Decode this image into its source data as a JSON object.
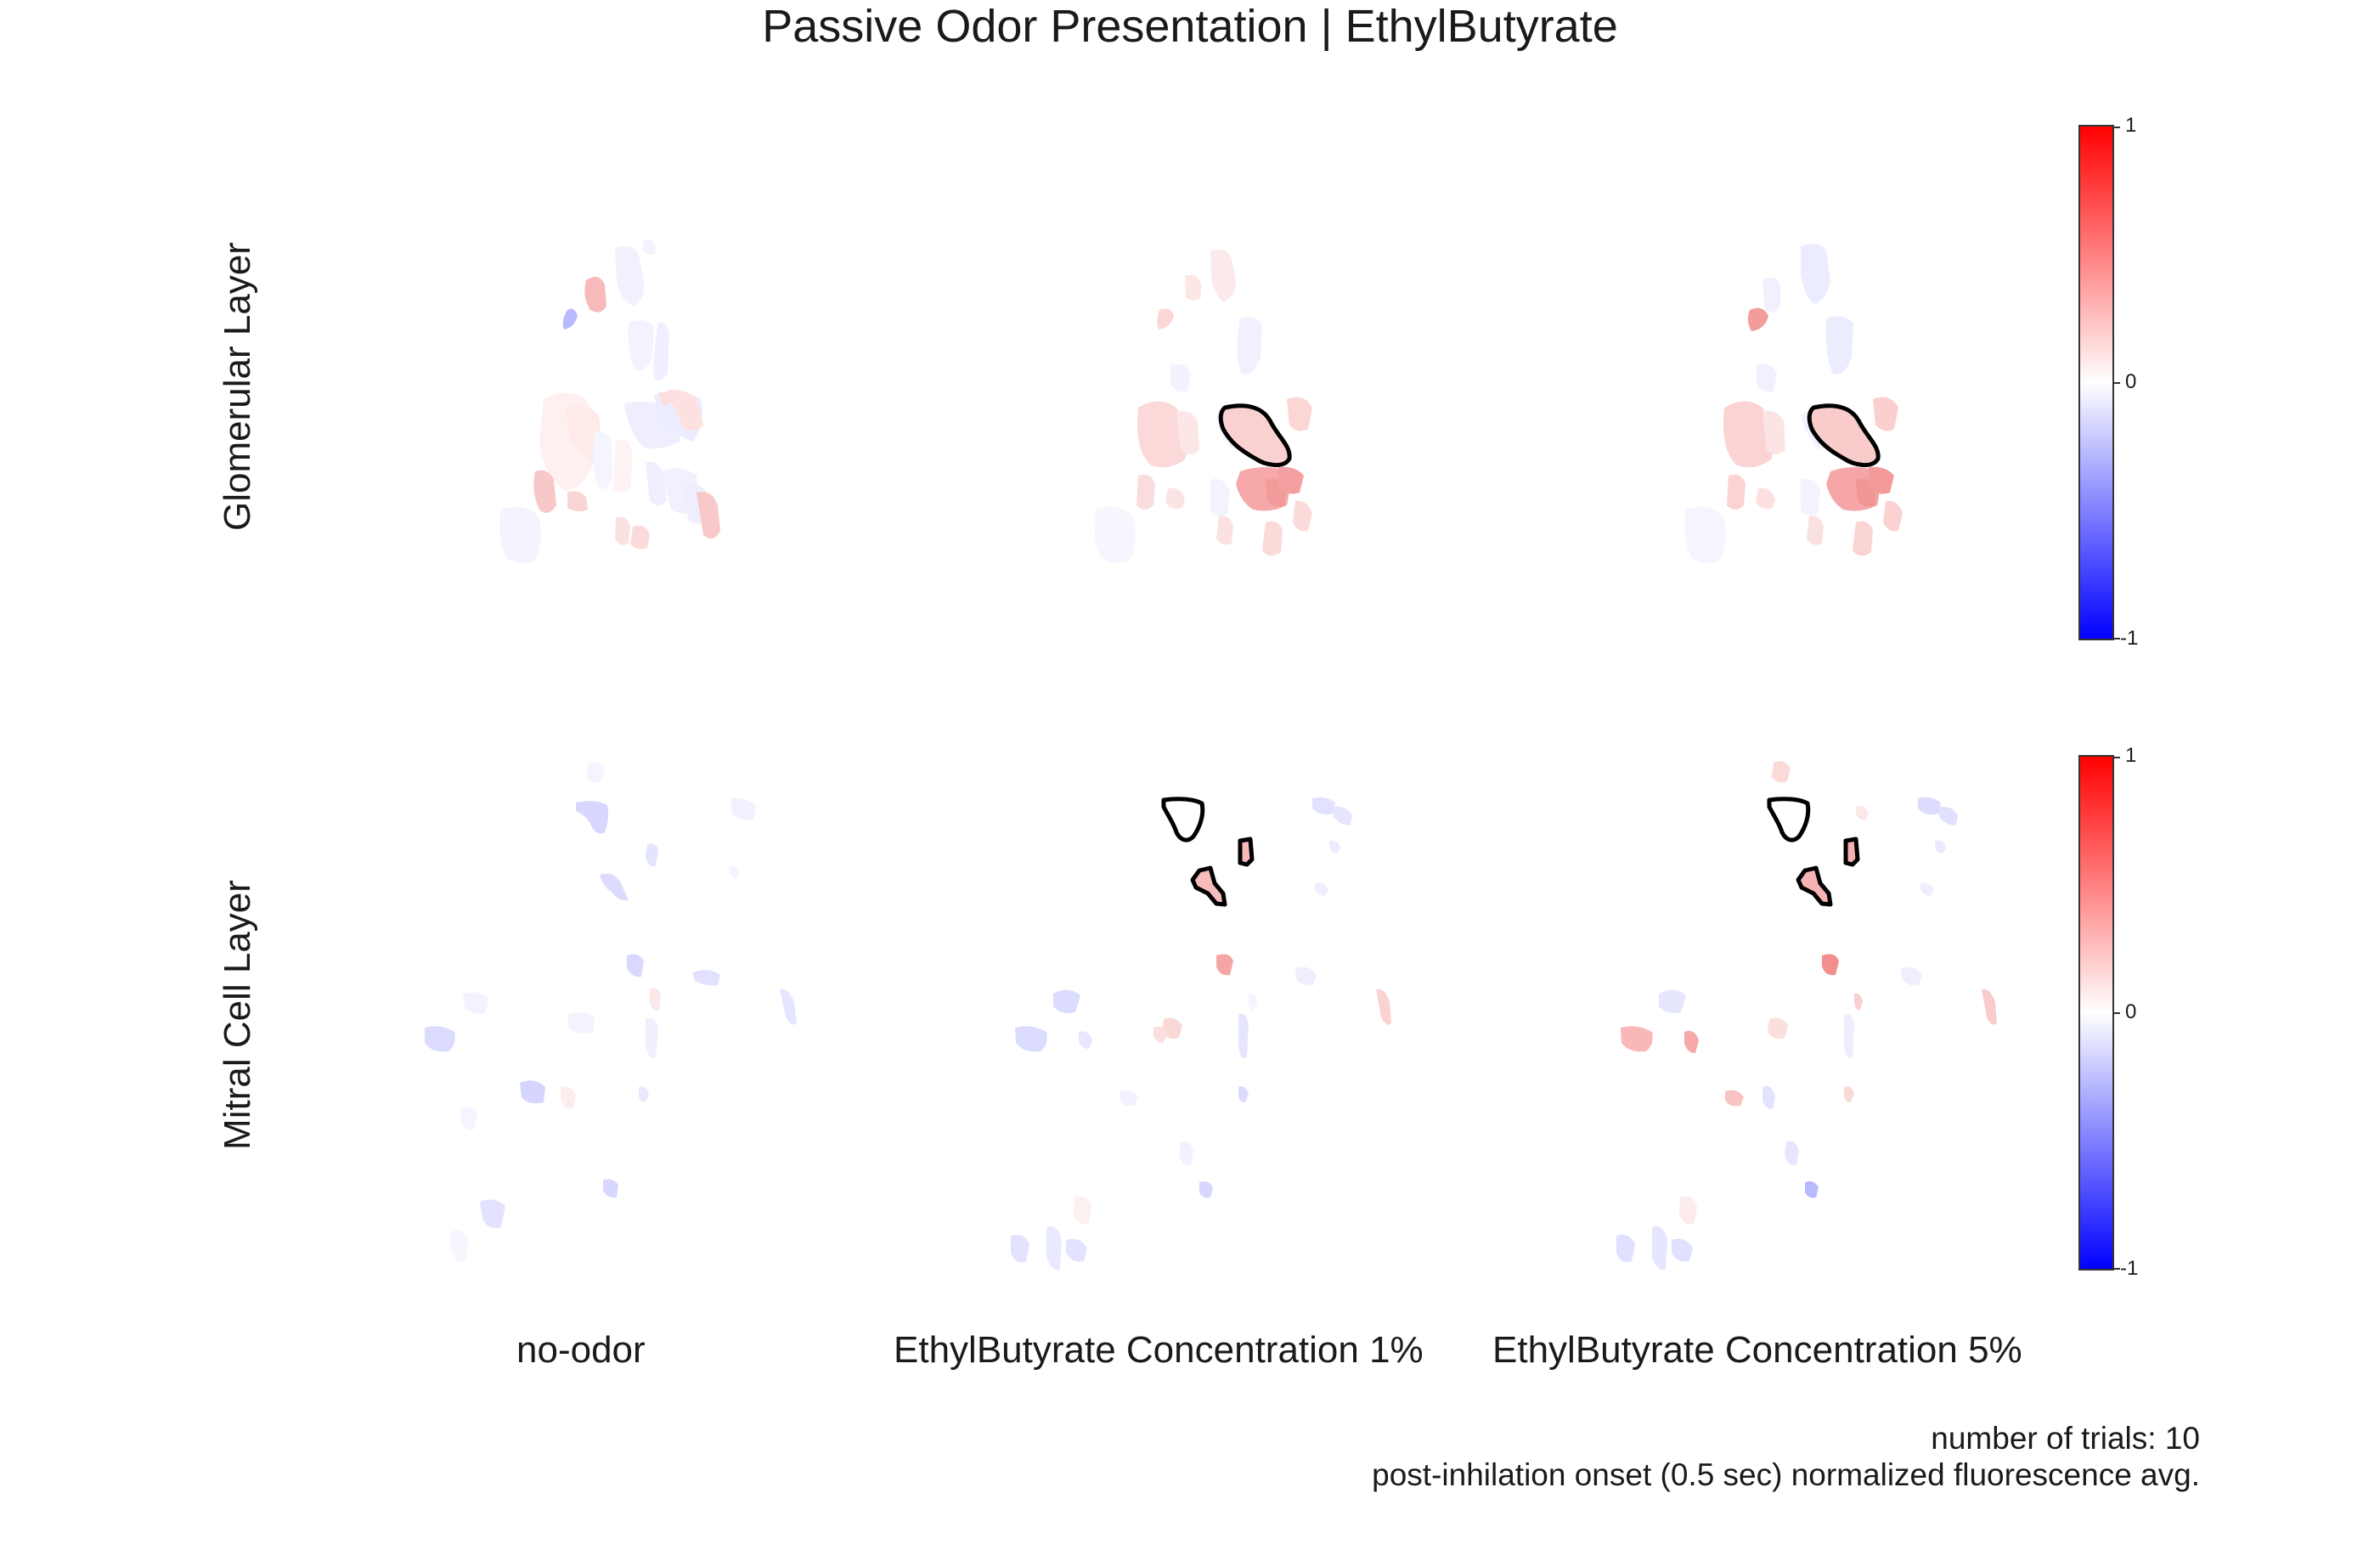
{
  "title": "Passive Odor Presentation |  EthylButyrate",
  "rows": [
    {
      "label": "Glomerular Layer"
    },
    {
      "label": "Mitral Cell Layer"
    }
  ],
  "columns": [
    "no-odor",
    "EthylButyrate Concentration 1%",
    "EthylButyrate Concentration 5%"
  ],
  "colorbar": {
    "ticks": [
      "1",
      "0",
      "-1"
    ],
    "colors": {
      "max": "#ff0000",
      "mid": "#ffffff",
      "min": "#0000ff"
    }
  },
  "footnote": {
    "line1": "number of trials: 10",
    "line2": "post-inhilation onset (0.5 sec) normalized fluorescence avg."
  },
  "highlight_outline_color": "#000000"
}
